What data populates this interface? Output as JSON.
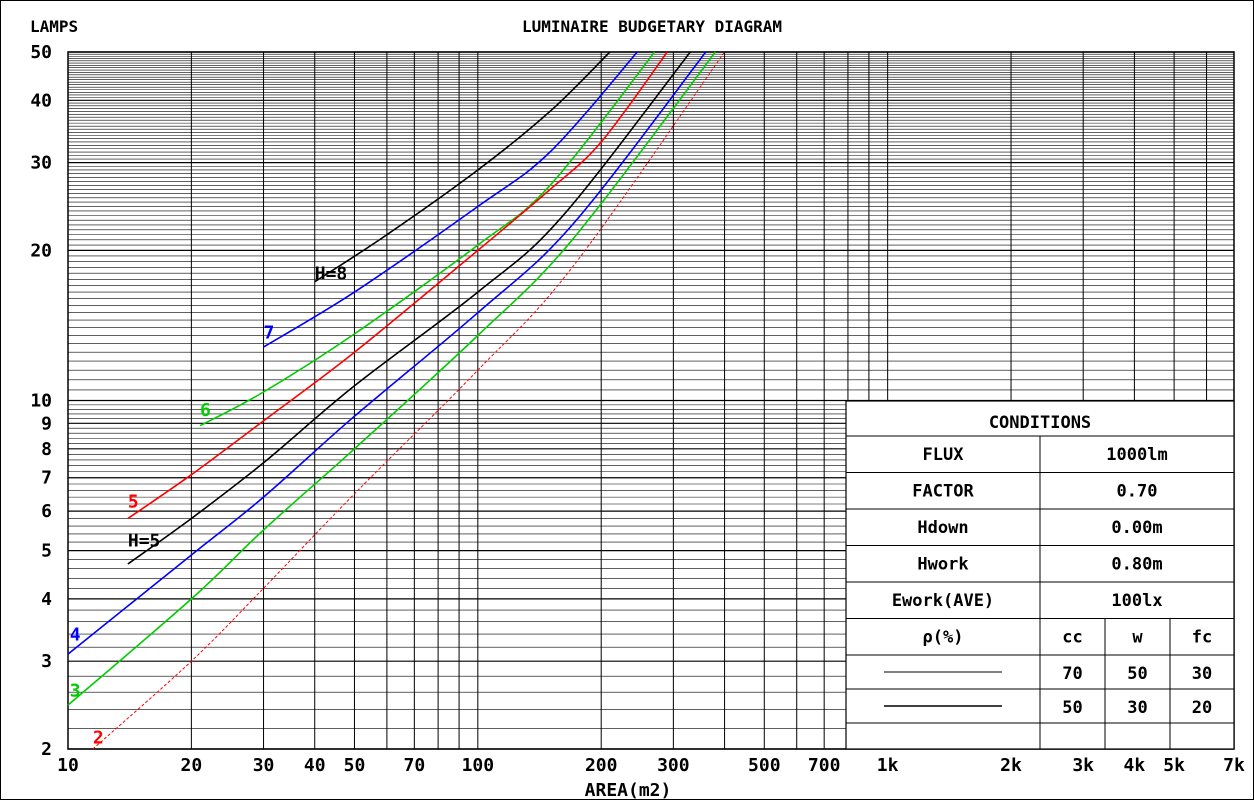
{
  "chart_data": {
    "type": "line",
    "title": "LUMINAIRE BUDGETARY DIAGRAM",
    "ylabel": "LAMPS",
    "xlabel": "AREA(m2)",
    "x_scale": "log",
    "y_scale": "log",
    "xlim": [
      10,
      7000
    ],
    "ylim": [
      2,
      50
    ],
    "x_tick_labels": [
      {
        "v": 10,
        "t": "10"
      },
      {
        "v": 20,
        "t": "20"
      },
      {
        "v": 30,
        "t": "30"
      },
      {
        "v": 40,
        "t": "40"
      },
      {
        "v": 50,
        "t": "50"
      },
      {
        "v": 70,
        "t": "70"
      },
      {
        "v": 100,
        "t": "100"
      },
      {
        "v": 200,
        "t": "200"
      },
      {
        "v": 300,
        "t": "300"
      },
      {
        "v": 500,
        "t": "500"
      },
      {
        "v": 700,
        "t": "700"
      },
      {
        "v": 1000,
        "t": "1k"
      },
      {
        "v": 2000,
        "t": "2k"
      },
      {
        "v": 3000,
        "t": "3k"
      },
      {
        "v": 4000,
        "t": "4k"
      },
      {
        "v": 5000,
        "t": "5k"
      },
      {
        "v": 7000,
        "t": "7k"
      }
    ],
    "y_tick_labels": [
      {
        "v": 2,
        "t": "2"
      },
      {
        "v": 3,
        "t": "3"
      },
      {
        "v": 4,
        "t": "4"
      },
      {
        "v": 5,
        "t": "5"
      },
      {
        "v": 6,
        "t": "6"
      },
      {
        "v": 7,
        "t": "7"
      },
      {
        "v": 8,
        "t": "8"
      },
      {
        "v": 9,
        "t": "9"
      },
      {
        "v": 10,
        "t": "10"
      },
      {
        "v": 20,
        "t": "20"
      },
      {
        "v": 30,
        "t": "30"
      },
      {
        "v": 40,
        "t": "40"
      },
      {
        "v": 50,
        "t": "50"
      }
    ],
    "series": [
      {
        "name": "H=8",
        "label": "H=8",
        "color": "#000000",
        "dash": false,
        "label_at": [
          40,
          17.5
        ],
        "points": [
          [
            40,
            17.3
          ],
          [
            60,
            21.5
          ],
          [
            100,
            29
          ],
          [
            150,
            38
          ],
          [
            210,
            50
          ]
        ]
      },
      {
        "name": "7",
        "label": "7",
        "color": "#0000ff",
        "dash": false,
        "label_at": [
          30,
          13.3
        ],
        "points": [
          [
            30,
            12.8
          ],
          [
            50,
            16.5
          ],
          [
            100,
            24.5
          ],
          [
            150,
            31.5
          ],
          [
            245,
            50
          ]
        ]
      },
      {
        "name": "6",
        "label": "6",
        "color": "#00cc00",
        "dash": false,
        "label_at": [
          21,
          9.3
        ],
        "points": [
          [
            21,
            8.9
          ],
          [
            30,
            10.4
          ],
          [
            50,
            13.6
          ],
          [
            100,
            20.5
          ],
          [
            150,
            27
          ],
          [
            270,
            50
          ]
        ]
      },
      {
        "name": "5",
        "label": "5",
        "color": "#ff0000",
        "dash": false,
        "label_at": [
          14,
          6.1
        ],
        "points": [
          [
            14,
            5.8
          ],
          [
            20,
            7.1
          ],
          [
            30,
            9.1
          ],
          [
            50,
            12.5
          ],
          [
            100,
            20
          ],
          [
            150,
            26.5
          ],
          [
            200,
            33
          ],
          [
            290,
            50
          ]
        ]
      },
      {
        "name": "H=5",
        "label": "H=5",
        "color": "#000000",
        "dash": false,
        "label_at": [
          14,
          5.1
        ],
        "points": [
          [
            14,
            4.7
          ],
          [
            20,
            5.8
          ],
          [
            30,
            7.5
          ],
          [
            50,
            10.7
          ],
          [
            100,
            16.5
          ],
          [
            160,
            23.3
          ],
          [
            330,
            50
          ]
        ]
      },
      {
        "name": "4",
        "label": "4",
        "color": "#0000ff",
        "dash": false,
        "label_at": [
          10.1,
          3.3
        ],
        "points": [
          [
            10,
            3.1
          ],
          [
            20,
            4.9
          ],
          [
            30,
            6.4
          ],
          [
            50,
            9.3
          ],
          [
            100,
            15
          ],
          [
            170,
            22.5
          ],
          [
            360,
            50
          ]
        ]
      },
      {
        "name": "3",
        "label": "3",
        "color": "#00cc00",
        "dash": false,
        "label_at": [
          10.1,
          2.55
        ],
        "points": [
          [
            10,
            2.45
          ],
          [
            20,
            4.0
          ],
          [
            30,
            5.5
          ],
          [
            50,
            8.0
          ],
          [
            100,
            13.5
          ],
          [
            170,
            21
          ],
          [
            380,
            50
          ]
        ]
      },
      {
        "name": "2",
        "label": "2",
        "color": "#ff0000",
        "dash": true,
        "label_at": [
          11.5,
          2.05
        ],
        "points": [
          [
            11.5,
            2.0
          ],
          [
            20,
            3.0
          ],
          [
            30,
            4.2
          ],
          [
            50,
            6.5
          ],
          [
            100,
            11.5
          ],
          [
            170,
            18.5
          ],
          [
            400,
            50
          ]
        ]
      }
    ],
    "grid": true
  },
  "conditions": {
    "title": "CONDITIONS",
    "rows": [
      {
        "label": "FLUX",
        "value": "1000lm"
      },
      {
        "label": "FACTOR",
        "value": "0.70"
      },
      {
        "label": "Hdown",
        "value": "0.00m"
      },
      {
        "label": "Hwork",
        "value": "0.80m"
      },
      {
        "label": "Ework(AVE)",
        "value": "100lx"
      }
    ],
    "rho_label": "ρ(%)",
    "rho_headers": [
      "cc",
      "w",
      "fc"
    ],
    "rho_rows": [
      {
        "style": "thin",
        "values": [
          "70",
          "50",
          "30"
        ]
      },
      {
        "style": "thick",
        "values": [
          "50",
          "30",
          "20"
        ]
      }
    ]
  }
}
